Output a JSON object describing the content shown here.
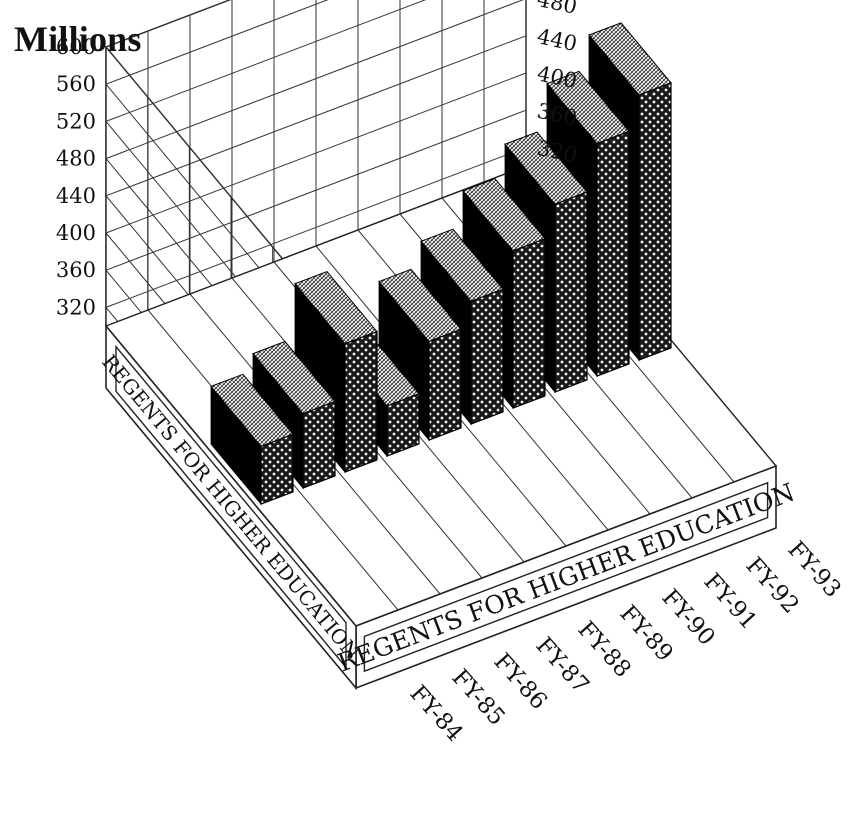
{
  "chart_data": {
    "type": "bar",
    "style": "3d",
    "ylabel": "Millions",
    "categories": [
      "FY-84",
      "FY-85",
      "FY-86",
      "FY-87",
      "FY-88",
      "FY-89",
      "FY-90",
      "FY-91",
      "FY-92",
      "FY-93"
    ],
    "values": [
      362,
      380,
      438,
      354,
      406,
      432,
      469,
      502,
      550,
      585
    ],
    "ylim": [
      300,
      600
    ],
    "yticks": [
      320,
      360,
      400,
      440,
      480,
      520,
      560,
      600
    ],
    "series_label": "REGENTS FOR HIGHER EDUCATION",
    "grid": true,
    "colors": {
      "bar_pattern_dark": "#1a1a1a",
      "bar_pattern_light": "#f2f2f2",
      "bar_side": "#000000",
      "grid": "#333333"
    }
  }
}
